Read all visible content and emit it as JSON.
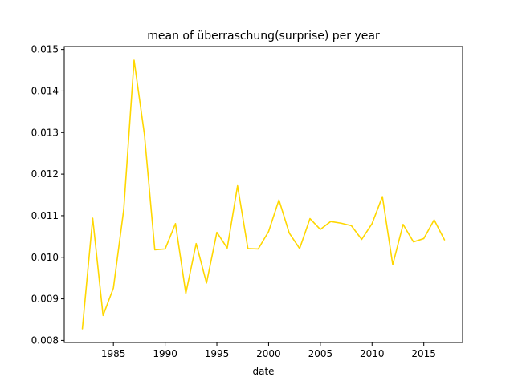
{
  "chart_data": {
    "type": "line",
    "title": "mean of überraschung(surprise) per year",
    "xlabel": "date",
    "ylabel": "",
    "x": [
      1982,
      1983,
      1984,
      1985,
      1986,
      1987,
      1988,
      1989,
      1990,
      1991,
      1992,
      1993,
      1994,
      1995,
      1996,
      1997,
      1998,
      1999,
      2000,
      2001,
      2002,
      2003,
      2004,
      2005,
      2006,
      2007,
      2008,
      2009,
      2010,
      2011,
      2012,
      2013,
      2014,
      2015,
      2016,
      2017
    ],
    "series": [
      {
        "values": [
          0.00828,
          0.01094,
          0.0086,
          0.00926,
          0.01115,
          0.01474,
          0.01295,
          0.01018,
          0.0102,
          0.01081,
          0.00913,
          0.01033,
          0.00938,
          0.0106,
          0.01022,
          0.01172,
          0.01021,
          0.0102,
          0.01062,
          0.01138,
          0.01058,
          0.01021,
          0.01093,
          0.01067,
          0.01086,
          0.01082,
          0.01076,
          0.01043,
          0.01081,
          0.01146,
          0.00982,
          0.01079,
          0.01037,
          0.01045,
          0.0109,
          0.01042
        ],
        "color": "#ffd700"
      }
    ],
    "xlim": [
      1980.25,
      2018.75
    ],
    "ylim": [
      0.00795,
      0.01507
    ],
    "xticks": [
      1985,
      1990,
      1995,
      2000,
      2005,
      2010,
      2015
    ],
    "xtick_labels": [
      "1985",
      "1990",
      "1995",
      "2000",
      "2005",
      "2010",
      "2015"
    ],
    "yticks": [
      0.008,
      0.009,
      0.01,
      0.011,
      0.012,
      0.013,
      0.014,
      0.015
    ],
    "ytick_labels": [
      "0.008",
      "0.009",
      "0.010",
      "0.011",
      "0.012",
      "0.013",
      "0.014",
      "0.015"
    ],
    "grid": false,
    "legend": "none"
  }
}
